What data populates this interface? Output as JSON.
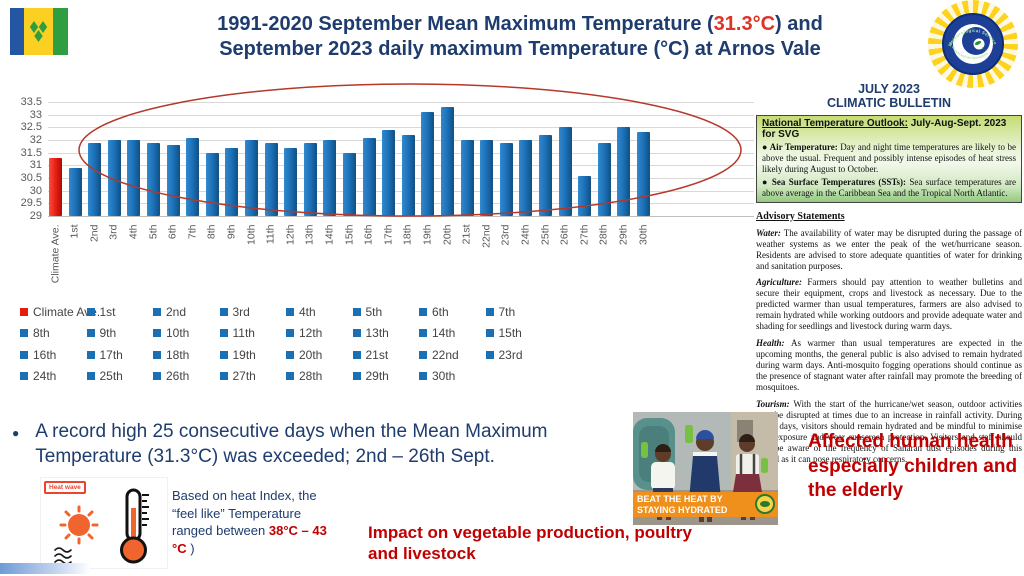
{
  "title": {
    "part1": "1991-2020 September Mean Maximum Temperature (",
    "highlight": "31.3°C",
    "part2": ") and",
    "line2": "September 2023 daily maximum Temperature (°C) at Arnos Vale"
  },
  "chart_data": {
    "type": "bar",
    "title": "1991-2020 September Mean Maximum Temperature (31.3°C) and September 2023 daily maximum Temperature (°C) at Arnos Vale",
    "xlabel": "",
    "ylabel": "",
    "ylim": [
      29,
      33.5
    ],
    "ytick_step": 0.5,
    "grid": true,
    "legend_position": "bottom",
    "bar_color": "#1b6fb5",
    "highlight_color": "#e51c12",
    "highlight_index": 0,
    "annotation": "red ellipse drawn around the bars for the 2nd to the 26th",
    "categories": [
      "Climate Ave.",
      "1st",
      "2nd",
      "3rd",
      "4th",
      "5th",
      "6th",
      "7th",
      "8th",
      "9th",
      "10th",
      "11th",
      "12th",
      "13th",
      "14th",
      "15th",
      "16th",
      "17th",
      "18th",
      "19th",
      "20th",
      "21st",
      "22nd",
      "23rd",
      "24th",
      "25th",
      "26th",
      "27th",
      "28th",
      "29th",
      "30th"
    ],
    "values": [
      31.3,
      30.9,
      31.9,
      32.0,
      32.0,
      31.9,
      31.8,
      32.1,
      31.5,
      31.7,
      32.0,
      31.9,
      31.7,
      31.9,
      32.0,
      31.5,
      32.1,
      32.4,
      32.2,
      33.1,
      33.3,
      32.0,
      32.0,
      31.9,
      32.0,
      32.2,
      32.5,
      30.6,
      31.9,
      32.5,
      32.3
    ]
  },
  "bulletin": {
    "title_line1": "JULY 2023",
    "title_line2": "CLIMATIC BULLETIN",
    "outlook": {
      "heading": "National Temperature Outlook:",
      "heading_rest": "  July-Aug-Sept. 2023 for SVG",
      "bullets": [
        {
          "label": "● Air Temperature: ",
          "text": "Day and night time temperatures are likely to be above the usual. Frequent and possibly intense episodes of heat stress likely during August to October."
        },
        {
          "label": "● Sea Surface Temperatures (SSTs): ",
          "text": "Sea surface temperatures are above average in the Caribbean Sea and the Tropical North Atlantic."
        }
      ]
    },
    "advisory": {
      "heading": "Advisory Statements",
      "items": [
        {
          "label": "Water: ",
          "text": "The availability of water may be disrupted during the passage of weather systems as we enter the peak of the wet/hurricane season.  Residents are advised to store adequate quantities of water for drinking and sanitation purposes."
        },
        {
          "label": "Agriculture: ",
          "text": "Farmers should pay attention to weather bulletins and secure their equipment, crops and livestock as necessary. Due to the predicted warmer than usual temperatures, farmers are also advised to remain hydrated while working outdoors and provide adequate water and shading for seedlings and livestock during warm days."
        },
        {
          "label": "Health: ",
          "text": "As warmer than usual temperatures are expected in the upcoming months, the general public is also advised to remain hydrated during warm days. Anti-mosquito fogging operations should continue as the presence of stagnant water after rainfall may promote the breeding of mosquitoes."
        },
        {
          "label": "Tourism: ",
          "text": "With the start of the hurricane/wet season, outdoor activities may be disrupted at times due to an increase in rainfall activity. During warm days, visitors should remain hydrated and be mindful to minimise skin exposure and wear sunscreen protection. Visitors and staff  should also be aware of the frequency of Saharan dust  episodes during this period as it can pose respiratory concerns."
        }
      ]
    }
  },
  "notes": {
    "record_bullet": "A record high 25 consecutive days when the Mean Maximum Temperature (31.3°C) was exceeded; 2nd – 26th Sept.",
    "heatwave_chip": "Heat wave",
    "feel_like_part1": "Based on heat Index, the “feel like” Temperature ranged between ",
    "feel_like_range": "38°C – 43 °C",
    "feel_like_part2": " )",
    "impact": "Impact on vegetable production, poultry and livestock",
    "affected": "Affected human health especially children and the elderly"
  },
  "photo_banner": {
    "line1": "BEAT THE HEAT BY",
    "line2": "STAYING HYDRATED"
  },
  "logo": {
    "arc_top": "Meteorological Service",
    "arc_bottom": "St. Vincent and the Grenadines"
  },
  "colors": {
    "navy": "#1e3c6e",
    "red_accent": "#c00000",
    "title_red": "#e03127",
    "bar_blue": "#1b6fb5",
    "bar_red": "#e51c12",
    "gridline": "#d9d9d9"
  }
}
